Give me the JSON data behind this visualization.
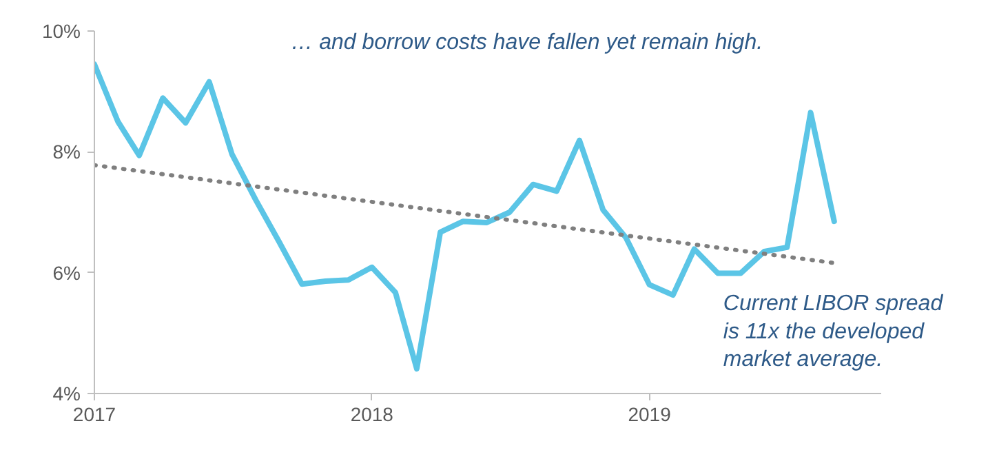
{
  "chart_data": {
    "type": "line",
    "x": [
      "2017-01",
      "2017-02",
      "2017-03",
      "2017-04",
      "2017-05",
      "2017-06",
      "2017-07",
      "2017-08",
      "2017-09",
      "2017-10",
      "2017-11",
      "2017-12",
      "2018-01",
      "2018-02",
      "2018-03",
      "2018-04",
      "2018-05",
      "2018-06",
      "2018-07",
      "2018-08",
      "2018-09",
      "2018-10",
      "2018-11",
      "2018-12",
      "2019-01",
      "2019-02",
      "2019-03",
      "2019-04",
      "2019-05",
      "2019-06",
      "2019-07",
      "2019-08",
      "2019-09"
    ],
    "series": [
      {
        "color": "#5bc5e6",
        "values": [
          9.45,
          8.5,
          7.94,
          8.89,
          8.48,
          9.16,
          7.96,
          7.21,
          6.51,
          5.81,
          5.86,
          5.88,
          6.09,
          5.67,
          4.41,
          6.67,
          6.85,
          6.83,
          7.0,
          7.46,
          7.35,
          8.19,
          7.04,
          6.58,
          5.8,
          5.63,
          6.39,
          5.99,
          5.99,
          6.35,
          6.42,
          8.65,
          6.85
        ]
      },
      {
        "type": "line",
        "color": "#7f7f7f",
        "line_style": "dotted",
        "x": [
          "2017-01",
          "2019-09"
        ],
        "values": [
          7.78,
          6.16
        ]
      }
    ],
    "xlim": [
      "2017-01",
      "2019-11"
    ],
    "xticks": [
      "2017",
      "2018",
      "2019"
    ],
    "ylim": [
      4,
      10
    ],
    "yticks": [
      {
        "value": 4,
        "label": "4%"
      },
      {
        "value": 6,
        "label": "6%"
      },
      {
        "value": 8,
        "label": "8%"
      },
      {
        "value": 10,
        "label": "10%"
      }
    ],
    "grid": false,
    "marker": "none",
    "line_style": "solid",
    "annotations": [
      "… and borrow costs have fallen yet remain high.",
      "Current LIBOR spread\nis 11x the developed\nmarket average."
    ]
  }
}
